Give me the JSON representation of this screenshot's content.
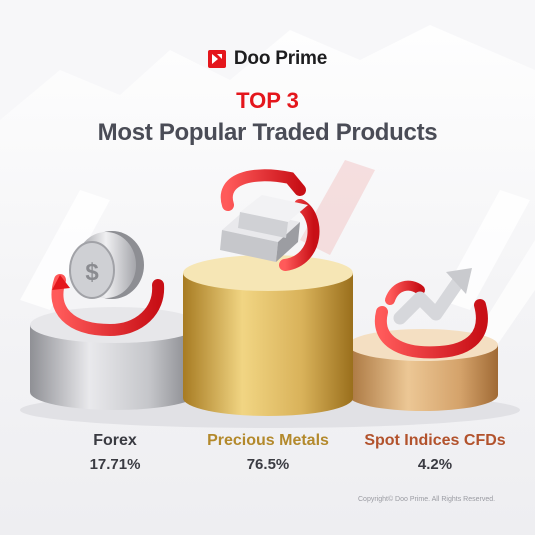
{
  "brand": {
    "name": "Doo Prime",
    "color": "#e4161c"
  },
  "heading": {
    "rank": "TOP 3",
    "title": "Most Popular Traded Products"
  },
  "products": [
    {
      "name": "Forex",
      "share": "17.71%",
      "color": "#3a3b42",
      "podium": "silver",
      "icon": "coins-icon"
    },
    {
      "name": "Precious Metals",
      "share": "76.5%",
      "color": "#b3892c",
      "podium": "gold",
      "icon": "gold-bars-icon"
    },
    {
      "name": "Spot Indices CFDs",
      "share": "4.2%",
      "color": "#b2522c",
      "podium": "bronze",
      "icon": "trend-arrow-icon"
    }
  ],
  "footer": {
    "copyright": "Copyright© Doo Prime. All Rights Reserved."
  }
}
